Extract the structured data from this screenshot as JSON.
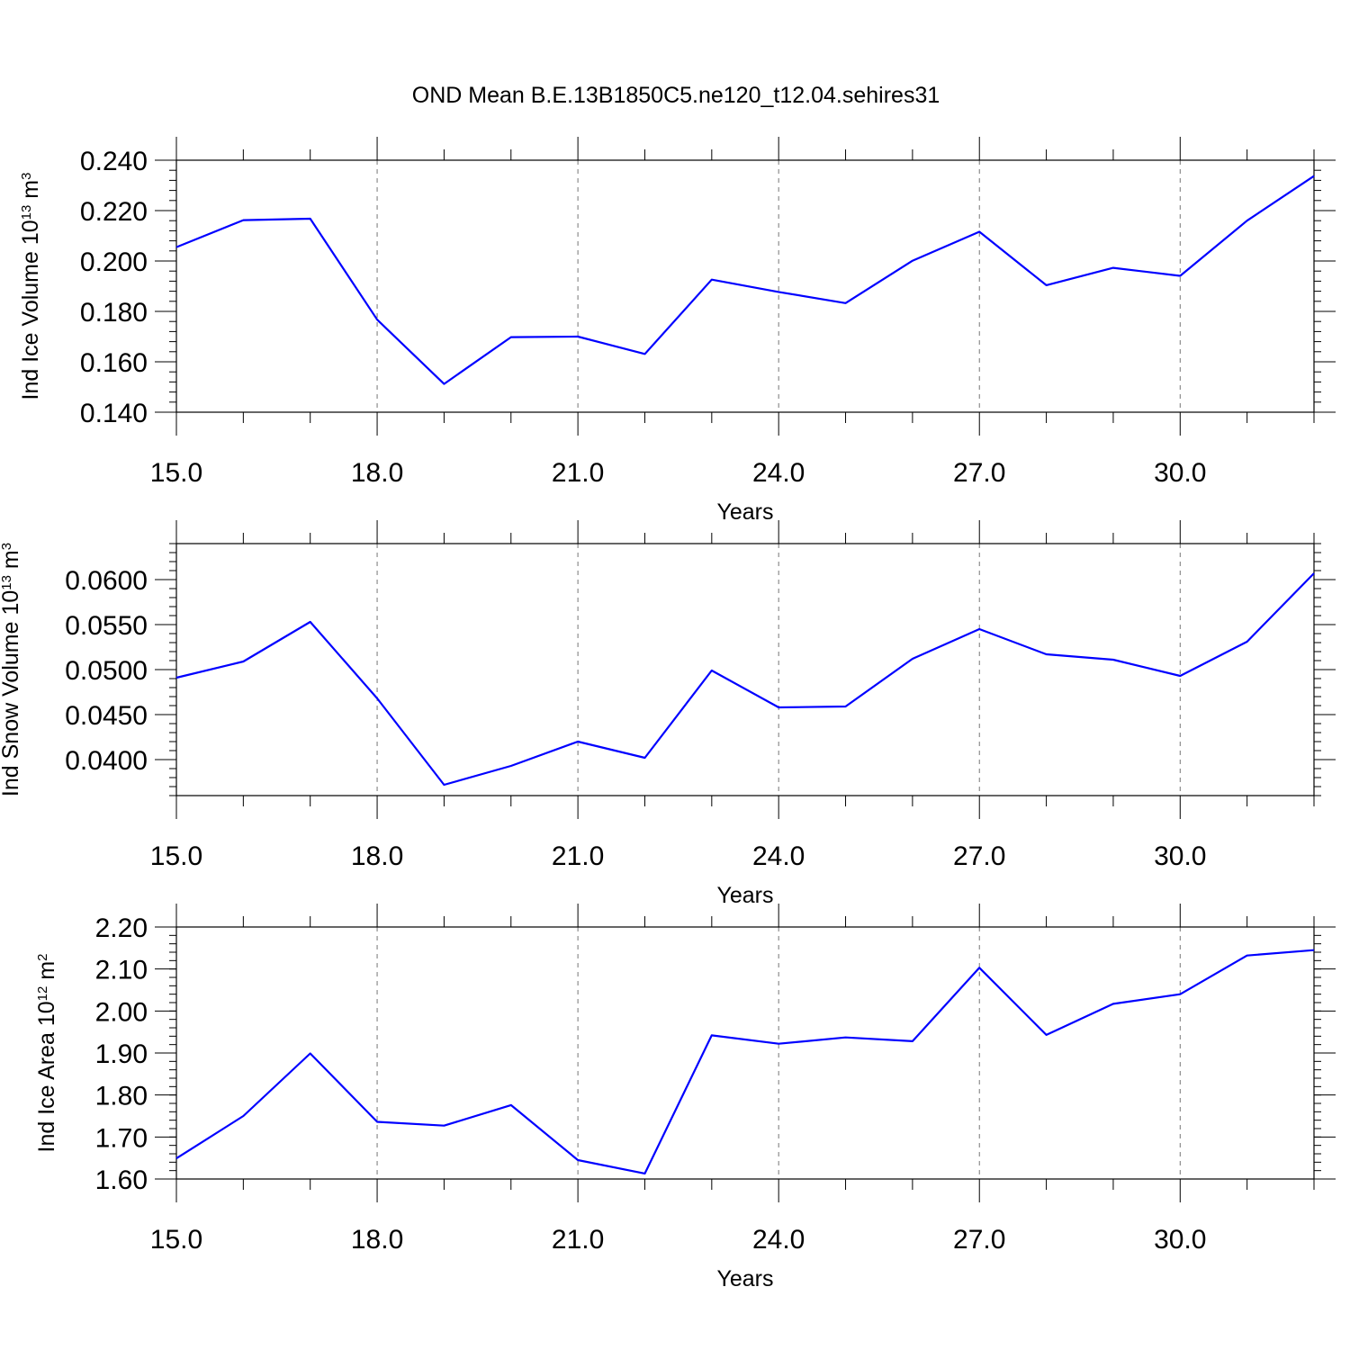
{
  "title": "OND Mean B.E.13B1850C5.ne120_t12.04.sehires31",
  "chart_data": [
    {
      "type": "line",
      "xlabel": "Years",
      "ylabel": "Ind Ice Volume 10",
      "ylabel_exp": "13",
      "ylabel_unit": " m",
      "ylabel_unit_exp": "3",
      "xlim": [
        15,
        32
      ],
      "ylim": [
        0.14,
        0.24
      ],
      "xticks": [
        "15.0",
        "18.0",
        "21.0",
        "24.0",
        "27.0",
        "30.0"
      ],
      "yticks": [
        "0.140",
        "0.160",
        "0.180",
        "0.200",
        "0.220",
        "0.240"
      ],
      "x": [
        15,
        16,
        17,
        18,
        19,
        20,
        21,
        22,
        23,
        24,
        25,
        26,
        27,
        28,
        29,
        30,
        31,
        32
      ],
      "series": [
        {
          "values": [
            0.2055,
            0.2162,
            0.2168,
            0.1767,
            0.1512,
            0.1698,
            0.17,
            0.1631,
            0.1926,
            0.1877,
            0.1833,
            0.2001,
            0.2116,
            0.1904,
            0.1973,
            0.1941,
            0.216,
            0.2337
          ],
          "color": "#0000ff"
        }
      ]
    },
    {
      "type": "line",
      "xlabel": "Years",
      "ylabel": "Ind Snow Volume 10",
      "ylabel_exp": "13",
      "ylabel_unit": " m",
      "ylabel_unit_exp": "3",
      "xlim": [
        15,
        32
      ],
      "ylim": [
        0.036,
        0.064
      ],
      "xticks": [
        "15.0",
        "18.0",
        "21.0",
        "24.0",
        "27.0",
        "30.0"
      ],
      "yticks": [
        "0.0400",
        "0.0450",
        "0.0500",
        "0.0550",
        "0.0600"
      ],
      "x": [
        15,
        16,
        17,
        18,
        19,
        20,
        21,
        22,
        23,
        24,
        25,
        26,
        27,
        28,
        29,
        30,
        31,
        32
      ],
      "series": [
        {
          "values": [
            0.0491,
            0.0509,
            0.0553,
            0.0468,
            0.0372,
            0.0393,
            0.042,
            0.0402,
            0.0499,
            0.0458,
            0.0459,
            0.0512,
            0.0545,
            0.0517,
            0.0511,
            0.0493,
            0.0531,
            0.0607
          ],
          "color": "#0000ff"
        }
      ]
    },
    {
      "type": "line",
      "xlabel": "Years",
      "ylabel": "Ind Ice Area 10",
      "ylabel_exp": "12",
      "ylabel_unit": " m",
      "ylabel_unit_exp": "2",
      "xlim": [
        15,
        32
      ],
      "ylim": [
        1.6,
        2.2
      ],
      "xticks": [
        "15.0",
        "18.0",
        "21.0",
        "24.0",
        "27.0",
        "30.0"
      ],
      "yticks": [
        "1.60",
        "1.70",
        "1.80",
        "1.90",
        "2.00",
        "2.10",
        "2.20"
      ],
      "x": [
        15,
        16,
        17,
        18,
        19,
        20,
        21,
        22,
        23,
        24,
        25,
        26,
        27,
        28,
        29,
        30,
        31,
        32
      ],
      "series": [
        {
          "values": [
            1.649,
            1.75,
            1.899,
            1.736,
            1.727,
            1.776,
            1.645,
            1.613,
            1.942,
            1.922,
            1.937,
            1.928,
            2.103,
            1.943,
            2.017,
            2.04,
            2.132,
            2.145
          ],
          "color": "#0000ff"
        }
      ]
    }
  ]
}
